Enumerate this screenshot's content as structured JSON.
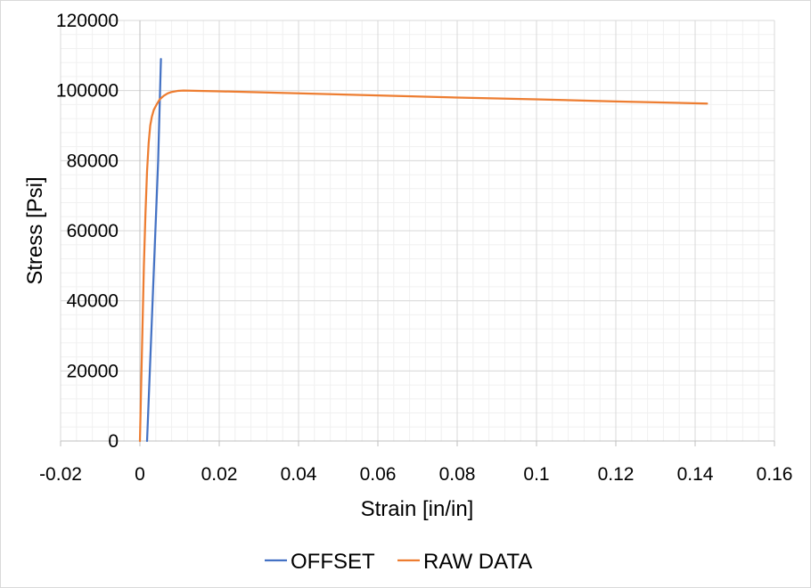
{
  "chart_data": {
    "type": "scatter",
    "xlabel": "Strain [in/in]",
    "ylabel": "Stress [Psi]",
    "xlim": [
      -0.02,
      0.16
    ],
    "ylim": [
      0,
      120000
    ],
    "x_major_ticks": [
      -0.02,
      0,
      0.02,
      0.04,
      0.06,
      0.08,
      0.1,
      0.12,
      0.14,
      0.16
    ],
    "x_tick_labels": [
      "-0.02",
      "0",
      "0.02",
      "0.04",
      "0.06",
      "0.08",
      "0.1",
      "0.12",
      "0.14",
      "0.16"
    ],
    "y_major_ticks": [
      0,
      20000,
      40000,
      60000,
      80000,
      100000,
      120000
    ],
    "y_tick_labels": [
      "0",
      "20000",
      "40000",
      "60000",
      "80000",
      "100000",
      "120000"
    ],
    "grid": "major and minor",
    "legend_position": "bottom",
    "series": [
      {
        "name": "OFFSET",
        "color": "#4472c4",
        "x": [
          0.0018,
          0.0025,
          0.0032,
          0.0039,
          0.0046,
          0.0053
        ],
        "y": [
          0,
          20000,
          40000,
          60000,
          80000,
          109000
        ]
      },
      {
        "name": "RAW DATA",
        "color": "#ed7d31",
        "x": [
          0,
          0.0002,
          0.0006,
          0.001,
          0.0014,
          0.0018,
          0.0022,
          0.0026,
          0.003,
          0.0035,
          0.0042,
          0.005,
          0.006,
          0.007,
          0.008,
          0.0095,
          0.011,
          0.02,
          0.04,
          0.06,
          0.08,
          0.1,
          0.12,
          0.143
        ],
        "y": [
          0,
          10000,
          30000,
          50000,
          65000,
          77000,
          85000,
          90000,
          92500,
          94500,
          96000,
          97500,
          98500,
          99200,
          99600,
          99900,
          100000,
          99800,
          99200,
          98600,
          98000,
          97500,
          96900,
          96300
        ]
      }
    ]
  }
}
